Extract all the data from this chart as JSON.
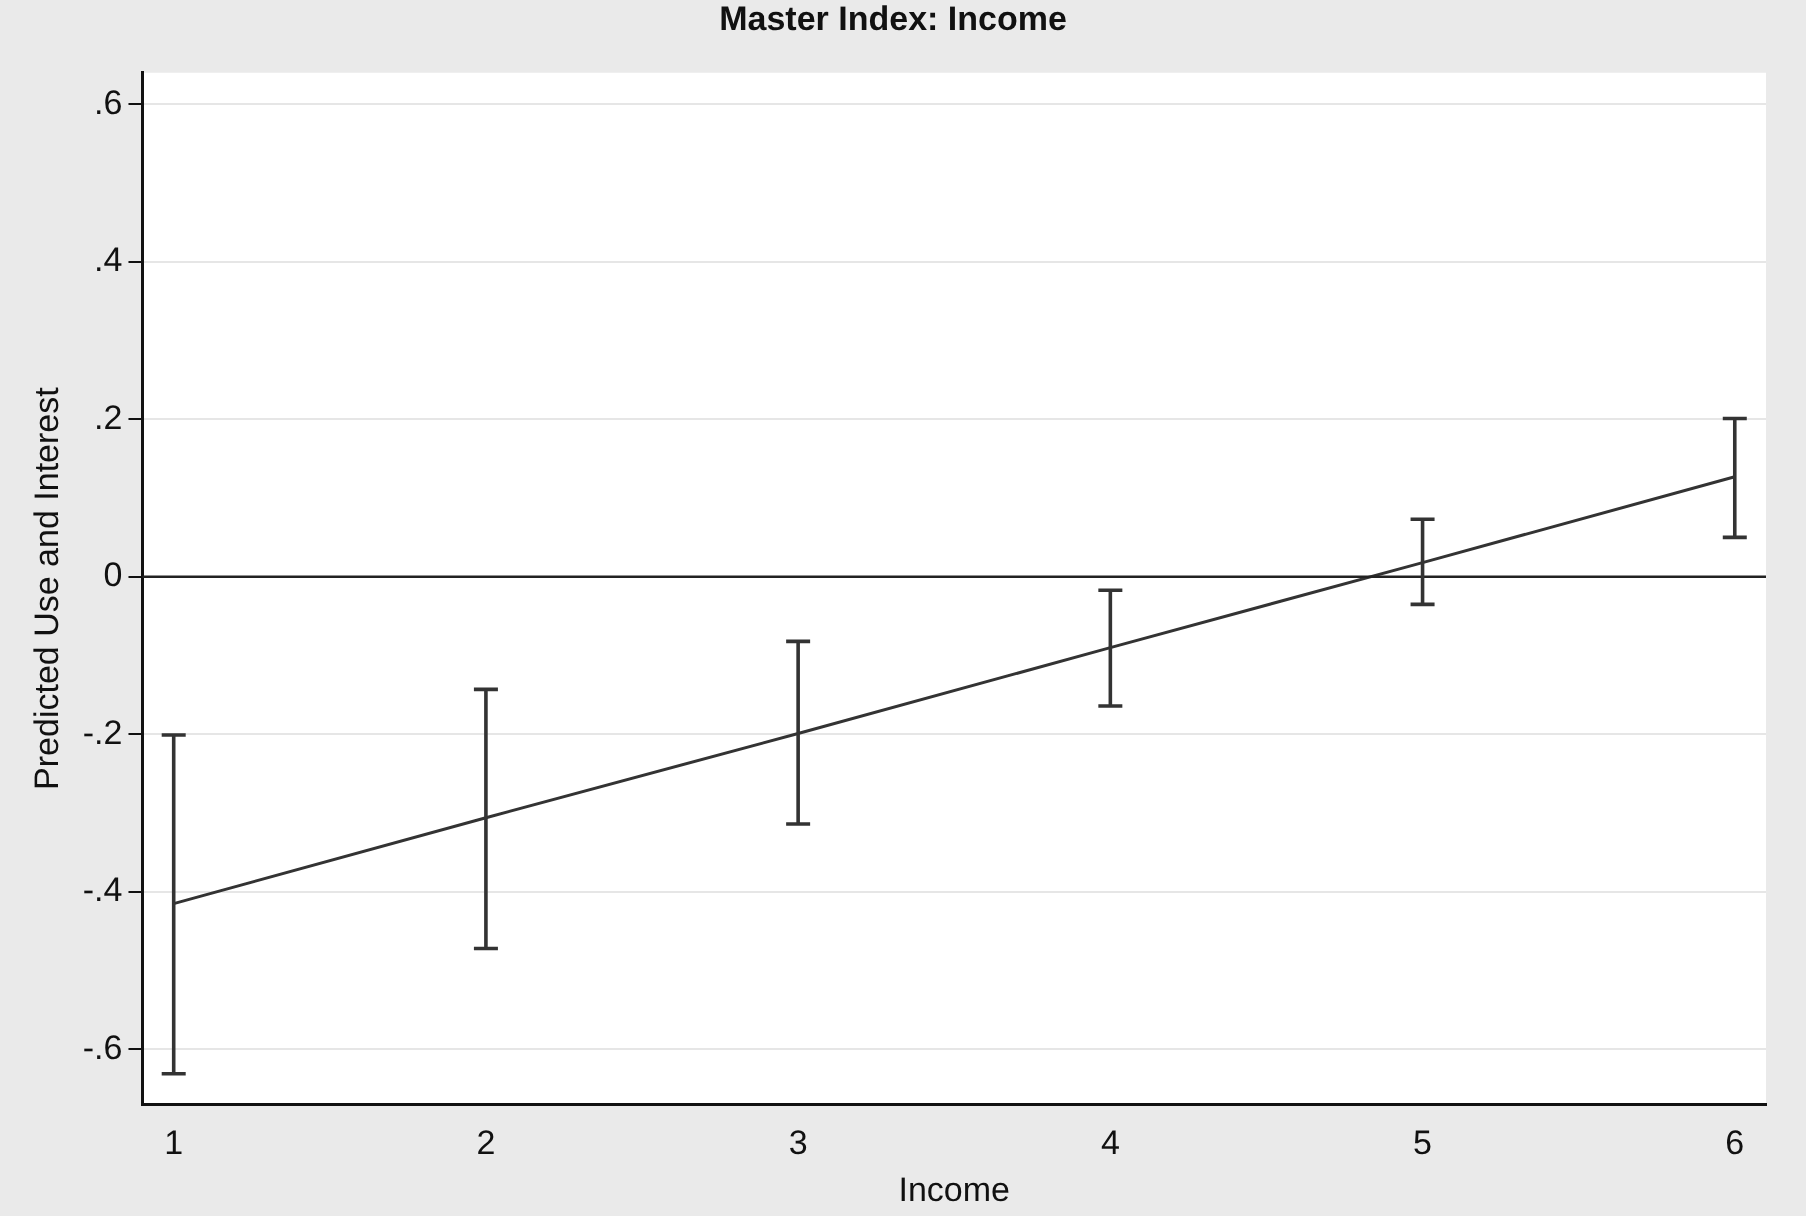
{
  "chart_data": {
    "type": "line",
    "title": "Master Index: Income",
    "xlabel": "Income",
    "ylabel": "Predicted Use and Interest",
    "x": [
      1,
      2,
      3,
      4,
      5,
      6
    ],
    "series": [
      {
        "color": "#333333",
        "values": [
          -0.415,
          -0.306,
          -0.199,
          -0.09,
          0.018,
          0.127
        ],
        "errors": [
          [
            -0.631,
            -0.201
          ],
          [
            -0.472,
            -0.143
          ],
          [
            -0.314,
            -0.082
          ],
          [
            -0.164,
            -0.017
          ],
          [
            -0.035,
            0.073
          ],
          [
            0.05,
            0.201
          ]
        ]
      }
    ],
    "xlim": [
      0.9,
      6.1
    ],
    "xticks": [
      1,
      2,
      3,
      4,
      5,
      6
    ],
    "ylim": [
      -0.67,
      0.64
    ],
    "yticks": [
      {
        "value": -0.6,
        "label": "-.6"
      },
      {
        "value": -0.4,
        "label": "-.4"
      },
      {
        "value": -0.2,
        "label": "-.2"
      },
      {
        "value": 0,
        "label": "0"
      },
      {
        "value": 0.2,
        "label": ".2"
      },
      {
        "value": 0.4,
        "label": ".4"
      },
      {
        "value": 0.6,
        "label": ".6"
      }
    ],
    "ref_lines": [
      {
        "axis": "y",
        "value": 0,
        "color": "#222222"
      }
    ],
    "grid": "y",
    "legend": false,
    "marker": "none",
    "line_style": "solid"
  }
}
